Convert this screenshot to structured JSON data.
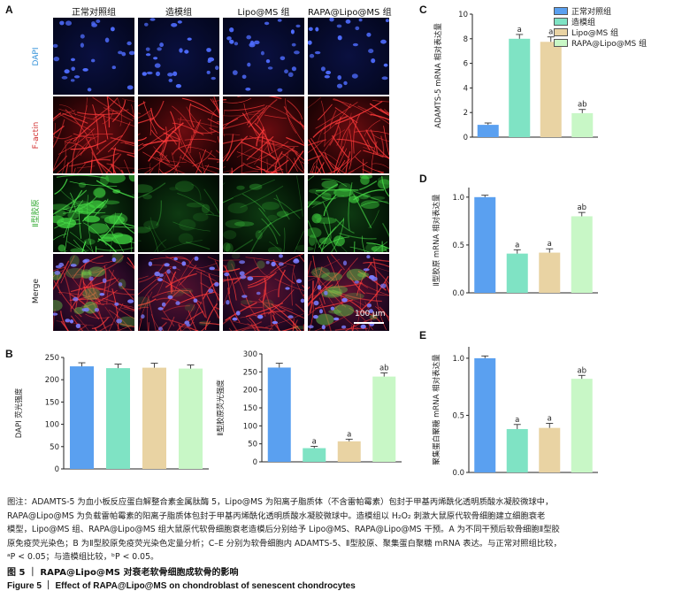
{
  "panel_labels": {
    "a": "A",
    "b": "B",
    "c": "C",
    "d": "D",
    "e": "E"
  },
  "panel_a": {
    "columns": [
      "正常对照组",
      "造模组",
      "Lipo@MS 组",
      "RAPA@Lipo@MS 组"
    ],
    "rows": [
      "DAPI",
      "F-actin",
      "Ⅱ型胶原",
      "Merge"
    ],
    "scale_bar": "100 μm"
  },
  "colors": {
    "control": "#5aa0f0",
    "model": "#7fe3c4",
    "lipo": "#e9d3a3",
    "rapa": "#c8f7c6",
    "dapi_label": "#2f8fd8",
    "factin_label": "#d22d2d",
    "col2_label": "#33aa33"
  },
  "legend": [
    "正常对照组",
    "造模组",
    "Lipo@MS 组",
    "RAPA@Lipo@MS 组"
  ],
  "chart_data": [
    {
      "type": "bar",
      "panel": "B-left",
      "categories": [
        "正常对照组",
        "造模组",
        "Lipo@MS 组",
        "RAPA@Lipo@MS 组"
      ],
      "values": [
        230,
        226,
        227,
        225
      ],
      "errors": [
        8,
        9,
        10,
        8
      ],
      "annotations": [
        "",
        "",
        "",
        ""
      ],
      "ylabel": "DAPI 荧光强度",
      "ylim": [
        0,
        250
      ],
      "yticks": [
        0,
        50,
        100,
        150,
        200,
        250
      ]
    },
    {
      "type": "bar",
      "panel": "B-right",
      "categories": [
        "正常对照组",
        "造模组",
        "Lipo@MS 组",
        "RAPA@Lipo@MS 组"
      ],
      "values": [
        262,
        38,
        57,
        237
      ],
      "errors": [
        12,
        5,
        6,
        10
      ],
      "annotations": [
        "",
        "a",
        "a",
        "ab"
      ],
      "ylabel": "Ⅱ型胶原荧光强度",
      "ylim": [
        0,
        300
      ],
      "yticks": [
        0,
        50,
        100,
        150,
        200,
        250,
        300
      ]
    },
    {
      "type": "bar",
      "panel": "C",
      "categories": [
        "正常对照组",
        "造模组",
        "Lipo@MS 组",
        "RAPA@Lipo@MS 组"
      ],
      "values": [
        1.0,
        8.0,
        7.75,
        1.95
      ],
      "errors": [
        0.15,
        0.35,
        0.4,
        0.3
      ],
      "annotations": [
        "",
        "a",
        "a",
        "ab"
      ],
      "ylabel": "ADAMTS-5 mRNA 相对表达量",
      "ylim": [
        0,
        10
      ],
      "yticks": [
        0,
        2,
        4,
        6,
        8,
        10
      ]
    },
    {
      "type": "bar",
      "panel": "D",
      "categories": [
        "正常对照组",
        "造模组",
        "Lipo@MS 组",
        "RAPA@Lipo@MS 组"
      ],
      "values": [
        1.0,
        0.41,
        0.42,
        0.8
      ],
      "errors": [
        0.02,
        0.04,
        0.04,
        0.04
      ],
      "annotations": [
        "",
        "a",
        "a",
        "ab"
      ],
      "ylabel": "Ⅱ型胶原 mRNA 相对表达量",
      "ylim": [
        0,
        1.1
      ],
      "yticks": [
        0.0,
        0.5,
        1.0
      ]
    },
    {
      "type": "bar",
      "panel": "E",
      "categories": [
        "正常对照组",
        "造模组",
        "Lipo@MS 组",
        "RAPA@Lipo@MS 组"
      ],
      "values": [
        1.0,
        0.38,
        0.39,
        0.82
      ],
      "errors": [
        0.02,
        0.04,
        0.04,
        0.03
      ],
      "annotations": [
        "",
        "a",
        "a",
        "ab"
      ],
      "ylabel": "聚集蛋白聚糖 mRNA 相对表达量",
      "ylim": [
        0,
        1.1
      ],
      "yticks": [
        0.0,
        0.5,
        1.0
      ]
    }
  ],
  "caption": {
    "l1": "图注：ADAMTS-5 为血小板反应蛋白解整合素金属肽酶 5，Lipo@MS 为阳离子脂质体（不含雷帕霉素）包封于甲基丙烯酰化透明质酸水凝胶微球中，",
    "l2": "RAPA@Lipo@MS 为负载雷帕霉素的阳离子脂质体包封于甲基丙烯酰化透明质酸水凝胶微球中。造模组以 H₂O₂ 刺激大鼠原代软骨细胞建立细胞衰老",
    "l3": "模型，Lipo@MS 组、RAPA@Lipo@MS 组大鼠原代软骨细胞衰老造模后分别给予 Lipo@MS、RAPA@Lipo@MS 干预。A 为不同干预后软骨细胞Ⅱ型胶",
    "l4": "原免疫荧光染色；B 为Ⅱ型胶原免疫荧光染色定量分析；C–E 分别为软骨细胞内 ADAMTS-5、Ⅱ型胶原、聚集蛋白聚糖 mRNA 表达。与正常对照组比较，",
    "l5": "ᵃP < 0.05；与造模组比较，ᵇP < 0.05。"
  },
  "figure_title_cn": "图 5 ｜ RAPA@Lipo@MS 对衰老软骨细胞成软骨的影响",
  "figure_title_en": "Figure 5 ｜ Effect of RAPA@Lipo@MS on chondroblast of senescent chondrocytes"
}
